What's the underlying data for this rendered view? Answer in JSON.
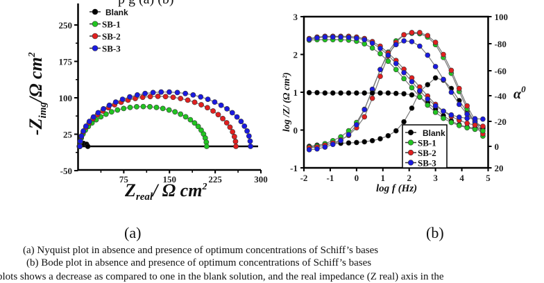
{
  "top_clipped_text": "p                    g (a)        (b)",
  "subfigure_labels": {
    "a": "(a)",
    "b": "(b)"
  },
  "captions": [
    "(a)   Nyquist plot in absence and presence of optimum concentrations of Schiff’s bases",
    "(b)  Bode plot in absence and presence of optimum concentrations of Schiff’s bases"
  ],
  "bottom_clipped_text": "plots shows a decrease as compared to one in the blank solution, and the real impedance (Z real) axis in the",
  "series_colors": {
    "Blank": "#000000",
    "SB-1": "#22c422",
    "SB-2": "#e02020",
    "SB-3": "#1a1ae0"
  },
  "chart_data": [
    {
      "type": "scatter",
      "title": "",
      "subtitle": "Nyquist plot",
      "xlabel_main": "Z",
      "xlabel_sub": "real",
      "xlabel_unit": "/ Ω cm",
      "xlabel_sup": "2",
      "ylabel_prefix": "-Z",
      "ylabel_sub": "img",
      "ylabel_unit": "/Ω cm",
      "ylabel_sup": "2",
      "xlim": [
        0,
        300
      ],
      "ylim": [
        -50,
        290
      ],
      "xticks": [
        75,
        150,
        225,
        300
      ],
      "xtick_labels": [
        "75",
        "150",
        "225",
        "300"
      ],
      "yticks": [
        250,
        175,
        100,
        25,
        -50
      ],
      "ytick_labels": [
        "250",
        "175",
        "100",
        "25",
        "-50"
      ],
      "legend": [
        "Blank",
        "SB-1",
        "SB-2",
        "SB-3"
      ],
      "legend_position": "top-left",
      "series": [
        {
          "name": "Blank",
          "semicircle": {
            "r0": 2,
            "r1": 16,
            "peak": 6
          },
          "points": 4
        },
        {
          "name": "SB-1",
          "semicircle": {
            "r0": 3,
            "r1": 211,
            "peak": 82
          },
          "points": 30
        },
        {
          "name": "SB-2",
          "semicircle": {
            "r0": 3,
            "r1": 259,
            "peak": 103
          },
          "points": 32
        },
        {
          "name": "SB-3",
          "semicircle": {
            "r0": 3,
            "r1": 283,
            "peak": 112
          },
          "points": 33
        }
      ],
      "baseline_y": 0
    },
    {
      "type": "line",
      "subtitle": "Bode plot",
      "xlabel": "log f (Hz)",
      "ylabel": "log /Z/ (Ω cm²)",
      "y2label": "α",
      "y2label_sup": "0",
      "xlim": [
        -2,
        5
      ],
      "ylim": [
        -1,
        3
      ],
      "xticks": [
        -2,
        -1,
        0,
        1,
        2,
        3,
        4,
        5
      ],
      "xtick_labels": [
        "-2",
        "-1",
        "0",
        "1",
        "2",
        "3",
        "4",
        "5"
      ],
      "yticks": [
        3,
        2,
        1,
        0,
        -1
      ],
      "ytick_labels": [
        "3",
        "2",
        "1",
        "0",
        "-1"
      ],
      "y2tick_labels": [
        "100",
        "-80",
        "-60",
        "-40",
        "-20",
        "0",
        "20"
      ],
      "legend": [
        "Blank",
        "SB-1",
        "SB-2",
        "SB-3"
      ],
      "legend_position": "bottom-center",
      "x": [
        -1.8,
        -1.5,
        -1.2,
        -0.9,
        -0.6,
        -0.3,
        0.0,
        0.3,
        0.6,
        0.9,
        1.2,
        1.5,
        1.8,
        2.1,
        2.4,
        2.7,
        3.0,
        3.3,
        3.6,
        3.9,
        4.2,
        4.5,
        4.8
      ],
      "series_logZ": [
        {
          "name": "Blank",
          "values": [
            0.99,
            0.99,
            0.98,
            0.98,
            0.98,
            0.98,
            0.98,
            0.98,
            0.98,
            0.98,
            0.98,
            0.97,
            0.96,
            0.93,
            0.87,
            0.72,
            0.55,
            0.38,
            0.24,
            0.14,
            0.08,
            0.05,
            0.04
          ]
        },
        {
          "name": "SB-1",
          "values": [
            2.38,
            2.39,
            2.39,
            2.39,
            2.39,
            2.38,
            2.35,
            2.28,
            2.17,
            2.02,
            1.82,
            1.6,
            1.36,
            1.12,
            0.88,
            0.66,
            0.47,
            0.31,
            0.2,
            0.12,
            0.06,
            0.02,
            -0.02
          ]
        },
        {
          "name": "SB-2",
          "values": [
            2.42,
            2.46,
            2.48,
            2.48,
            2.48,
            2.48,
            2.46,
            2.42,
            2.34,
            2.22,
            2.04,
            1.84,
            1.61,
            1.38,
            1.14,
            0.9,
            0.68,
            0.5,
            0.36,
            0.26,
            0.18,
            0.13,
            0.1
          ]
        },
        {
          "name": "SB-3",
          "values": [
            2.4,
            2.44,
            2.46,
            2.46,
            2.46,
            2.45,
            2.43,
            2.39,
            2.3,
            2.16,
            1.98,
            1.76,
            1.52,
            1.28,
            1.04,
            0.82,
            0.64,
            0.5,
            0.4,
            0.34,
            0.31,
            0.3,
            0.29
          ]
        }
      ],
      "series_phase_in_logZ_units": [
        {
          "name": "Blank",
          "values": [
            -0.43,
            -0.4,
            -0.37,
            -0.36,
            -0.35,
            -0.34,
            -0.33,
            -0.31,
            -0.28,
            -0.23,
            -0.15,
            -0.02,
            0.22,
            0.58,
            1.02,
            1.2,
            1.38,
            1.32,
            1.1,
            0.78,
            0.48,
            0.22,
            0.05
          ]
        },
        {
          "name": "SB-1",
          "values": [
            -0.45,
            -0.42,
            -0.36,
            -0.28,
            -0.18,
            -0.02,
            0.2,
            0.55,
            1.06,
            1.6,
            2.06,
            2.36,
            2.52,
            2.56,
            2.55,
            2.46,
            2.26,
            1.92,
            1.5,
            1.02,
            0.56,
            0.18,
            -0.16
          ]
        },
        {
          "name": "SB-2",
          "values": [
            -0.47,
            -0.45,
            -0.4,
            -0.34,
            -0.26,
            -0.14,
            0.06,
            0.35,
            0.84,
            1.42,
            1.96,
            2.32,
            2.52,
            2.58,
            2.58,
            2.5,
            2.32,
            2.0,
            1.58,
            1.1,
            0.64,
            0.26,
            -0.1
          ]
        },
        {
          "name": "SB-3",
          "values": [
            -0.52,
            -0.5,
            -0.45,
            -0.38,
            -0.28,
            -0.12,
            0.14,
            0.54,
            1.08,
            1.6,
            2.02,
            2.26,
            2.36,
            2.34,
            2.22,
            1.98,
            1.68,
            1.34,
            1.0,
            0.68,
            0.42,
            0.22,
            0.08
          ]
        }
      ]
    }
  ]
}
